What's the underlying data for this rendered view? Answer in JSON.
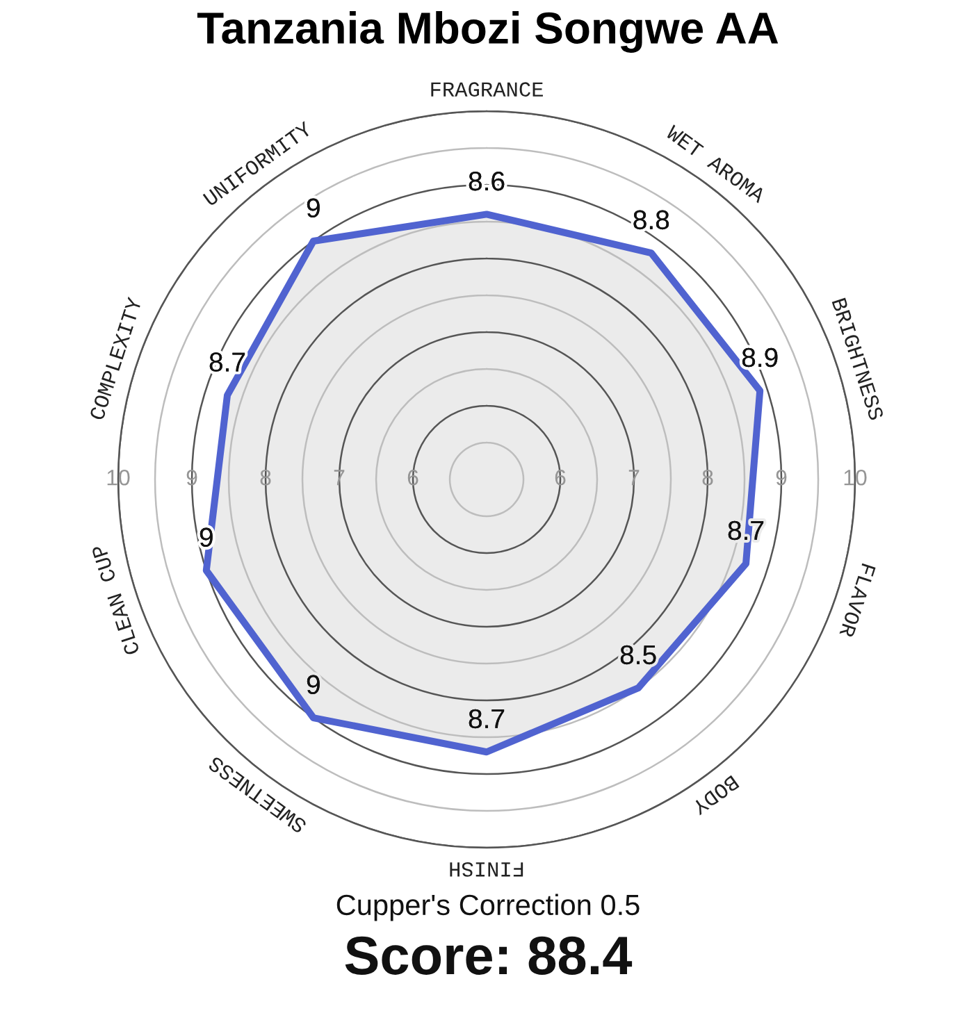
{
  "chart_data": {
    "type": "radar",
    "title": "Tanzania Mbozi Songwe AA",
    "categories": [
      "FRAGRANCE",
      "WET AROMA",
      "BRIGHTNESS",
      "FLAVOR",
      "BODY",
      "FINISH",
      "SWEETNESS",
      "CLEAN CUP",
      "COMPLEXITY",
      "UNIFORMITY"
    ],
    "series": [
      {
        "color": "#5063d0",
        "values": [
          8.6,
          8.8,
          8.9,
          8.7,
          8.5,
          8.7,
          9,
          9,
          8.7,
          9
        ]
      }
    ],
    "ylim": [
      5,
      10
    ],
    "yticks": [
      6,
      7,
      8,
      9,
      10,
      6,
      7,
      8,
      9,
      10
    ],
    "grid": true,
    "data_labels": true,
    "annotations": [
      "Cupper's Correction 0.5",
      "Score: 88.4"
    ]
  }
}
